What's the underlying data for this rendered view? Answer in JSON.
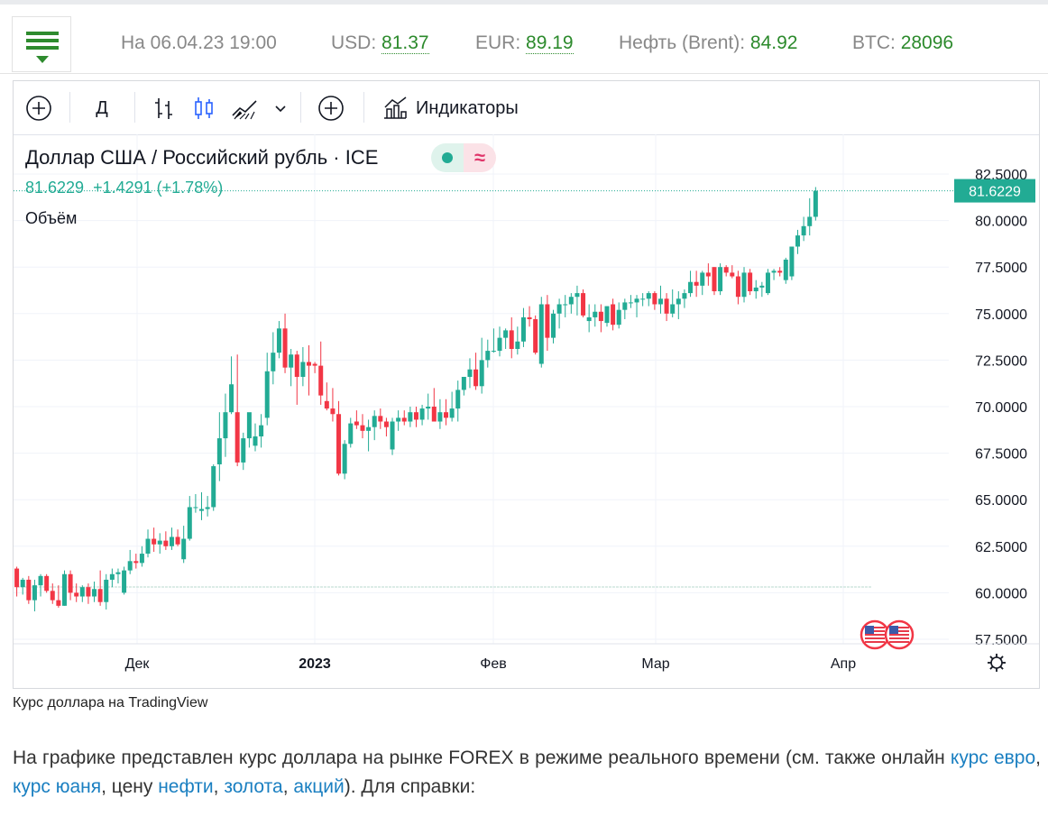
{
  "header": {
    "datetime": "На 06.04.23 19:00",
    "usd_label": "USD:",
    "usd_value": "81.37",
    "eur_label": "EUR:",
    "eur_value": "89.19",
    "oil_label": "Нефть (Brent):",
    "oil_value": "84.92",
    "btc_label": "BTC:",
    "btc_value": "28096"
  },
  "toolbar": {
    "interval": "Д",
    "indicators": "Индикаторы"
  },
  "legend": {
    "symbol": "Доллар США / Российский рубль · ICE",
    "price": "81.6229",
    "change": "+1.4291 (+1.78%)",
    "volume": "Объём",
    "approx": "≈"
  },
  "colors": {
    "up": "#22ab94",
    "down": "#f23645",
    "accent": "#2c8a2c",
    "link": "#1a7fc1"
  },
  "chart_data": {
    "type": "candlestick",
    "title": "Доллар США / Российский рубль · ICE",
    "ylim": [
      56.6,
      83.6
    ],
    "y_ticks": [
      "82.5000",
      "80.0000",
      "77.5000",
      "75.0000",
      "72.5000",
      "70.0000",
      "67.5000",
      "65.0000",
      "62.5000",
      "60.0000",
      "57.5000"
    ],
    "x_ticks": [
      "Дек",
      "2023",
      "Фев",
      "Мар",
      "Апр"
    ],
    "last_price_label": "81.6229",
    "series": [
      {
        "ohlc": [
          [
            61.3,
            61.4,
            59.8,
            60.3
          ],
          [
            60.3,
            60.8,
            59.9,
            60.7
          ],
          [
            60.7,
            60.9,
            59.4,
            59.6
          ],
          [
            59.6,
            60.7,
            59.0,
            60.4
          ],
          [
            60.4,
            61.0,
            59.8,
            60.9
          ],
          [
            60.9,
            61.0,
            60.0,
            60.1
          ],
          [
            60.1,
            60.5,
            59.4,
            59.6
          ],
          [
            59.6,
            60.4,
            59.2,
            59.3
          ],
          [
            59.3,
            61.2,
            59.3,
            61.0
          ],
          [
            61.0,
            61.2,
            59.6,
            60.0
          ],
          [
            60.0,
            60.5,
            59.5,
            59.8
          ],
          [
            59.8,
            60.4,
            59.5,
            60.3
          ],
          [
            60.3,
            60.5,
            59.4,
            59.8
          ],
          [
            59.8,
            60.6,
            59.5,
            60.2
          ],
          [
            60.2,
            61.2,
            59.3,
            59.5
          ],
          [
            59.5,
            61.0,
            59.1,
            60.7
          ],
          [
            60.7,
            61.3,
            60.3,
            61.0
          ],
          [
            61.0,
            61.3,
            60.5,
            61.1
          ],
          [
            60.0,
            61.4,
            59.9,
            61.2
          ],
          [
            61.2,
            62.3,
            61.0,
            61.7
          ],
          [
            61.7,
            62.1,
            61.3,
            61.6
          ],
          [
            61.6,
            62.5,
            61.4,
            62.1
          ],
          [
            62.1,
            63.4,
            61.9,
            62.9
          ],
          [
            62.9,
            63.5,
            62.2,
            62.6
          ],
          [
            62.6,
            63.2,
            62.1,
            62.8
          ],
          [
            62.8,
            63.3,
            62.3,
            62.5
          ],
          [
            62.5,
            63.5,
            62.3,
            63.0
          ],
          [
            63.0,
            63.4,
            62.5,
            62.6
          ],
          [
            61.8,
            63.6,
            61.6,
            62.9
          ],
          [
            62.9,
            65.2,
            62.8,
            64.6
          ],
          [
            64.6,
            65.3,
            64.3,
            64.6
          ],
          [
            64.4,
            65.4,
            63.9,
            64.5
          ],
          [
            64.5,
            65.2,
            64.1,
            64.6
          ],
          [
            64.6,
            66.9,
            64.4,
            66.8
          ],
          [
            66.9,
            69.7,
            66.0,
            68.3
          ],
          [
            68.3,
            70.7,
            67.3,
            69.7
          ],
          [
            69.7,
            72.7,
            69.6,
            71.2
          ],
          [
            69.7,
            72.8,
            66.8,
            67.0
          ],
          [
            67.0,
            68.6,
            66.6,
            68.3
          ],
          [
            68.3,
            69.6,
            67.8,
            69.7
          ],
          [
            67.9,
            69.1,
            67.6,
            68.4
          ],
          [
            68.4,
            69.6,
            67.8,
            69.0
          ],
          [
            69.4,
            72.9,
            69.0,
            71.9
          ],
          [
            71.9,
            74.0,
            71.2,
            72.9
          ],
          [
            72.9,
            74.6,
            72.6,
            74.2
          ],
          [
            74.2,
            75.0,
            71.8,
            72.1
          ],
          [
            72.1,
            73.1,
            71.1,
            72.8
          ],
          [
            72.8,
            73.0,
            70.1,
            71.6
          ],
          [
            71.6,
            73.2,
            71.1,
            72.4
          ],
          [
            72.4,
            73.3,
            70.6,
            72.2
          ],
          [
            72.3,
            72.4,
            71.8,
            72.2
          ],
          [
            72.2,
            73.5,
            70.1,
            70.6
          ],
          [
            70.3,
            71.3,
            69.8,
            69.9
          ],
          [
            69.9,
            71.0,
            69.2,
            69.6
          ],
          [
            69.6,
            70.3,
            66.3,
            66.4
          ],
          [
            66.4,
            68.2,
            66.1,
            68.0
          ],
          [
            68.0,
            69.4,
            67.8,
            69.1
          ],
          [
            69.2,
            69.8,
            68.8,
            69.0
          ],
          [
            69.0,
            69.6,
            68.3,
            68.7
          ],
          [
            68.7,
            69.3,
            67.6,
            68.9
          ],
          [
            68.9,
            69.8,
            68.2,
            69.5
          ],
          [
            69.5,
            69.9,
            68.8,
            69.2
          ],
          [
            69.2,
            69.4,
            68.4,
            68.9
          ],
          [
            67.7,
            69.4,
            67.4,
            69.2
          ],
          [
            69.2,
            69.8,
            68.7,
            69.4
          ],
          [
            69.4,
            69.8,
            69.0,
            69.2
          ],
          [
            69.2,
            70.0,
            68.9,
            69.7
          ],
          [
            69.7,
            70.0,
            68.9,
            69.3
          ],
          [
            69.3,
            70.1,
            69.0,
            69.9
          ],
          [
            69.9,
            70.7,
            69.3,
            70.0
          ],
          [
            70.0,
            71.0,
            69.3,
            69.2
          ],
          [
            69.2,
            70.4,
            68.8,
            69.7
          ],
          [
            69.7,
            70.4,
            69.0,
            69.4
          ],
          [
            69.4,
            70.8,
            69.2,
            69.9
          ],
          [
            69.9,
            71.4,
            69.2,
            70.9
          ],
          [
            70.9,
            71.6,
            70.6,
            71.6
          ],
          [
            71.6,
            72.6,
            71.0,
            72.0
          ],
          [
            72.0,
            72.9,
            70.9,
            71.1
          ],
          [
            71.1,
            73.7,
            70.7,
            72.5
          ],
          [
            72.5,
            73.6,
            72.1,
            73.0
          ],
          [
            73.0,
            74.2,
            72.9,
            73.0
          ],
          [
            73.0,
            74.3,
            72.7,
            73.7
          ],
          [
            73.7,
            74.2,
            73.1,
            74.1
          ],
          [
            74.1,
            74.8,
            72.6,
            73.1
          ],
          [
            73.1,
            74.3,
            72.8,
            73.5
          ],
          [
            73.5,
            75.3,
            73.2,
            74.8
          ],
          [
            74.8,
            75.4,
            74.3,
            74.7
          ],
          [
            74.7,
            74.9,
            72.8,
            72.9
          ],
          [
            72.3,
            75.9,
            72.1,
            75.5
          ],
          [
            75.5,
            76.0,
            73.0,
            73.7
          ],
          [
            73.7,
            75.2,
            73.4,
            75.0
          ],
          [
            75.0,
            75.8,
            74.2,
            75.5
          ],
          [
            75.5,
            76.0,
            74.8,
            75.5
          ],
          [
            75.5,
            76.1,
            75.0,
            75.9
          ],
          [
            75.9,
            76.5,
            74.9,
            76.1
          ],
          [
            76.1,
            76.3,
            74.8,
            74.9
          ],
          [
            74.6,
            75.5,
            74.0,
            74.8
          ],
          [
            74.8,
            75.5,
            74.3,
            75.1
          ],
          [
            75.1,
            75.5,
            74.0,
            74.6
          ],
          [
            74.5,
            75.4,
            74.3,
            75.4
          ],
          [
            75.5,
            75.8,
            74.1,
            74.4
          ],
          [
            74.4,
            75.6,
            74.2,
            75.2
          ],
          [
            75.2,
            75.8,
            74.7,
            75.6
          ],
          [
            75.6,
            76.0,
            75.3,
            75.6
          ],
          [
            75.6,
            76.0,
            74.8,
            75.8
          ],
          [
            75.8,
            76.1,
            75.4,
            75.8
          ],
          [
            75.8,
            76.2,
            75.4,
            76.1
          ],
          [
            76.1,
            76.2,
            75.2,
            75.5
          ],
          [
            75.5,
            76.5,
            75.0,
            75.8
          ],
          [
            75.8,
            76.1,
            74.6,
            75.0
          ],
          [
            75.0,
            76.3,
            74.8,
            75.5
          ],
          [
            75.5,
            76.2,
            74.7,
            75.8
          ],
          [
            75.8,
            76.3,
            75.3,
            76.1
          ],
          [
            76.1,
            77.3,
            75.9,
            76.7
          ],
          [
            76.7,
            77.3,
            75.9,
            76.5
          ],
          [
            76.5,
            77.3,
            76.0,
            77.2
          ],
          [
            77.2,
            77.7,
            76.5,
            77.0
          ],
          [
            77.5,
            77.5,
            76.0,
            76.2
          ],
          [
            76.2,
            77.7,
            76.0,
            77.5
          ],
          [
            77.5,
            77.6,
            77.0,
            77.2
          ],
          [
            77.2,
            77.6,
            76.9,
            77.0
          ],
          [
            77.0,
            77.3,
            75.5,
            75.9
          ],
          [
            75.9,
            77.5,
            75.6,
            77.2
          ],
          [
            77.2,
            77.4,
            76.0,
            76.2
          ],
          [
            76.2,
            76.8,
            75.8,
            76.4
          ],
          [
            76.4,
            76.7,
            75.9,
            76.5
          ],
          [
            76.1,
            77.4,
            76.0,
            77.2
          ],
          [
            77.2,
            77.4,
            76.8,
            77.3
          ],
          [
            77.3,
            77.5,
            77.0,
            77.2
          ],
          [
            76.8,
            78.0,
            76.6,
            77.9
          ],
          [
            77.0,
            78.6,
            76.8,
            78.6
          ],
          [
            78.6,
            79.5,
            78.2,
            79.2
          ],
          [
            79.2,
            80.2,
            78.9,
            79.7
          ],
          [
            79.7,
            81.2,
            79.2,
            80.2
          ],
          [
            80.2,
            81.8,
            80.0,
            81.6
          ]
        ]
      }
    ]
  },
  "credit": "Курс доллара на TradingView",
  "paragraph": {
    "t1": "На графике представлен курс доллара на рынке FOREX в режиме реального времени (см. также онлайн ",
    "l1": "курс евро",
    "t2": ", ",
    "l2": "курс юаня",
    "t3": ", цену ",
    "l3": "нефти",
    "t4": ", ",
    "l4": "золота",
    "t5": ", ",
    "l5": "акций",
    "t6": "). Для справки:"
  }
}
